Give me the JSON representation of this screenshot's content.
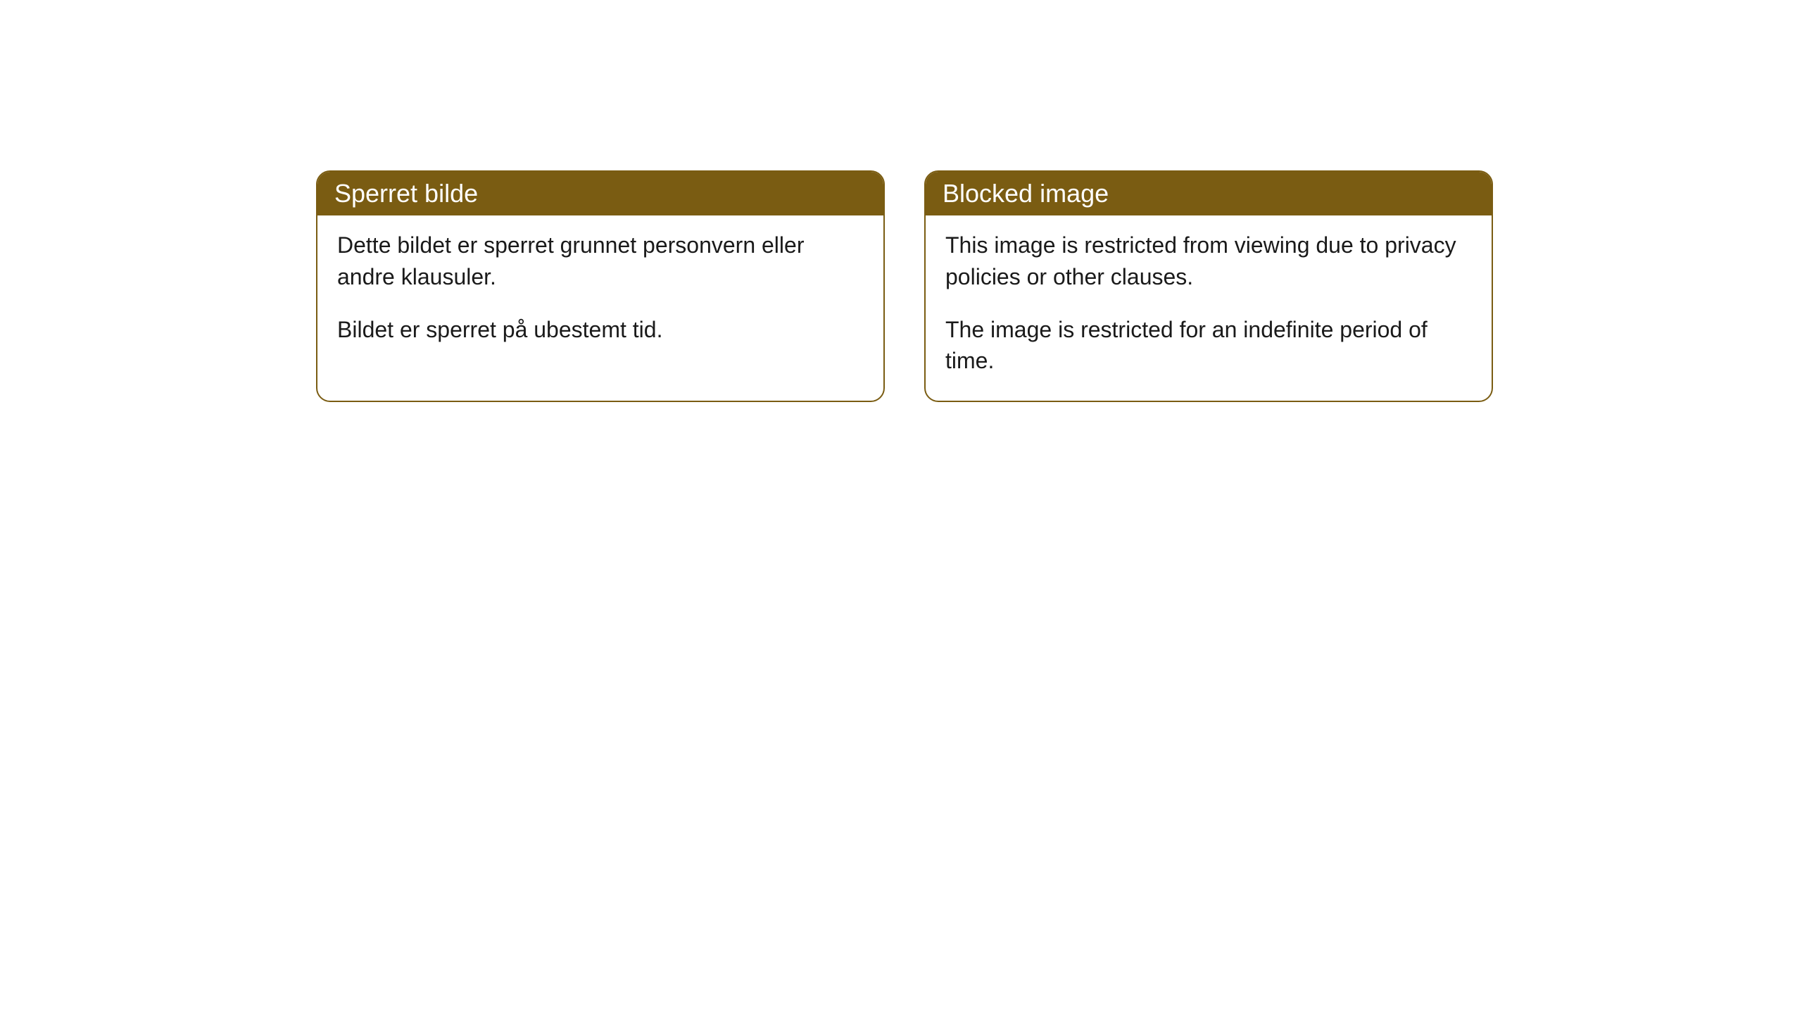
{
  "cards": [
    {
      "header": "Sperret bilde",
      "paragraph1": "Dette bildet er sperret grunnet personvern eller andre klausuler.",
      "paragraph2": "Bildet er sperret på ubestemt tid."
    },
    {
      "header": "Blocked image",
      "paragraph1": "This image is restricted from viewing due to privacy policies or other clauses.",
      "paragraph2": "The image is restricted for an indefinite period of time."
    }
  ],
  "style": {
    "header_bg_color": "#7a5c12",
    "header_text_color": "#ffffff",
    "border_color": "#7a5c12",
    "body_bg_color": "#ffffff",
    "body_text_color": "#1a1a1a",
    "border_radius": 20,
    "header_fontsize": 36,
    "body_fontsize": 32
  }
}
